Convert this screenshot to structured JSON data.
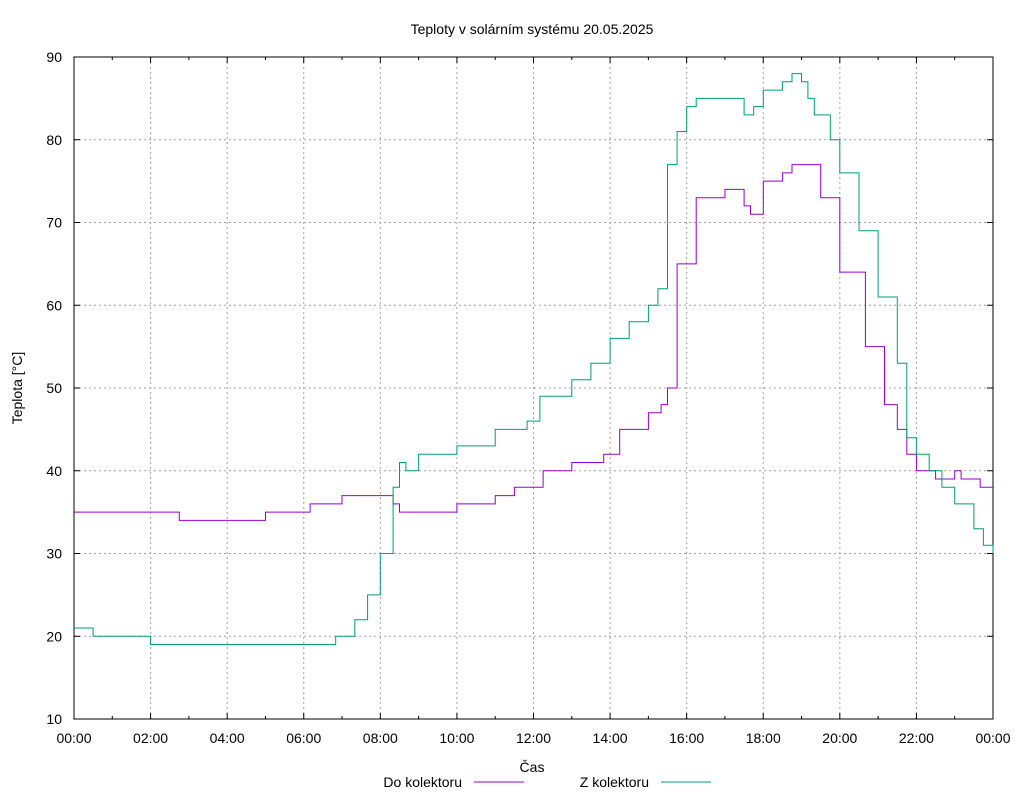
{
  "chart_data": {
    "type": "line",
    "title": "Teploty v solárním systému 20.05.2025",
    "xlabel": "Čas",
    "ylabel": "Teplota [°C]",
    "ylim": [
      10,
      90
    ],
    "yticks": [
      10,
      20,
      30,
      40,
      50,
      60,
      70,
      80,
      90
    ],
    "xlim_hours": [
      0,
      24
    ],
    "xticks": [
      "00:00",
      "02:00",
      "04:00",
      "06:00",
      "08:00",
      "10:00",
      "12:00",
      "14:00",
      "16:00",
      "18:00",
      "20:00",
      "22:00",
      "00:00"
    ],
    "grid": true,
    "legend_position": "bottom",
    "series": [
      {
        "name": "Do kolektoru",
        "color": "#9400d3",
        "x": [
          "00:00",
          "02:40",
          "02:45",
          "03:45",
          "05:00",
          "06:10",
          "07:00",
          "07:20",
          "08:20",
          "08:30",
          "09:00",
          "10:00",
          "11:00",
          "11:30",
          "12:15",
          "13:00",
          "13:50",
          "14:15",
          "15:00",
          "15:20",
          "15:30",
          "15:45",
          "16:15",
          "17:00",
          "17:30",
          "17:40",
          "18:00",
          "18:30",
          "18:45",
          "19:00",
          "19:30",
          "20:00",
          "20:40",
          "21:10",
          "21:30",
          "21:45",
          "22:00",
          "22:30",
          "22:45",
          "23:00",
          "23:10",
          "23:30",
          "23:40",
          "24:00"
        ],
        "y": [
          35,
          35,
          34,
          34,
          35,
          36,
          37,
          37,
          36,
          35,
          35,
          36,
          37,
          38,
          40,
          41,
          42,
          45,
          47,
          48,
          50,
          65,
          73,
          74,
          72,
          71,
          75,
          76,
          77,
          77,
          73,
          64,
          55,
          48,
          45,
          42,
          40,
          39,
          39,
          40,
          39,
          39,
          38,
          38
        ]
      },
      {
        "name": "Z kolektoru",
        "color": "#009e73",
        "x": [
          "00:00",
          "00:30",
          "01:50",
          "02:00",
          "06:30",
          "06:50",
          "07:20",
          "07:40",
          "08:00",
          "08:20",
          "08:30",
          "08:40",
          "09:00",
          "10:00",
          "11:00",
          "11:50",
          "12:10",
          "12:30",
          "13:00",
          "13:30",
          "14:00",
          "14:30",
          "15:00",
          "15:15",
          "15:30",
          "15:45",
          "16:00",
          "16:15",
          "16:30",
          "17:00",
          "17:30",
          "17:45",
          "18:00",
          "18:15",
          "18:30",
          "18:45",
          "19:00",
          "19:10",
          "19:20",
          "19:45",
          "20:00",
          "20:30",
          "21:00",
          "21:30",
          "21:45",
          "22:00",
          "22:20",
          "22:40",
          "23:00",
          "23:30",
          "23:45",
          "24:00"
        ],
        "y": [
          21,
          20,
          20,
          19,
          19,
          20,
          22,
          25,
          30,
          38,
          41,
          40,
          42,
          43,
          45,
          46,
          49,
          49,
          51,
          53,
          56,
          58,
          60,
          62,
          77,
          81,
          84,
          85,
          85,
          85,
          83,
          84,
          86,
          86,
          87,
          88,
          87,
          85,
          83,
          80,
          76,
          69,
          61,
          53,
          44,
          42,
          40,
          38,
          36,
          33,
          31,
          30
        ]
      }
    ]
  }
}
